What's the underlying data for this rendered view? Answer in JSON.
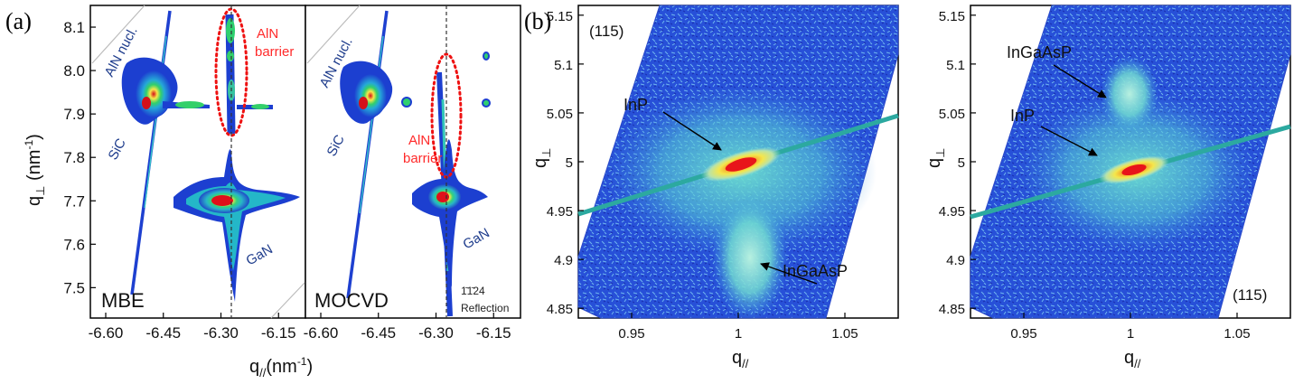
{
  "panel_labels": [
    "(a)",
    "(b)"
  ],
  "chart_data": [
    {
      "type": "heatmap",
      "panel": "(a)",
      "sample": "MBE",
      "xlabel": "q",
      "xlabel_sub": "//",
      "xlabel_unit": "(nm",
      "ylabel": "q",
      "ylabel_sub": "⊥",
      "ylabel_unit": " (nm",
      "unit_power": "-1",
      "xlim": [
        -6.64,
        -6.08
      ],
      "ylim": [
        7.43,
        8.15
      ],
      "xticks": [
        "-6.60",
        "-6.45",
        "-6.30",
        "-6.15"
      ],
      "xtick_values": [
        -6.6,
        -6.45,
        -6.3,
        -6.15
      ],
      "yticks": [
        "7.5",
        "7.6",
        "7.7",
        "7.8",
        "7.9",
        "8.0",
        "8.1"
      ],
      "ytick_values": [
        7.5,
        7.6,
        7.7,
        7.8,
        7.9,
        8.0,
        8.1
      ],
      "peaks": [
        {
          "label": "SiC",
          "qx": -6.5,
          "qz": 7.935
        },
        {
          "label": "GaN",
          "qx": -6.28,
          "qz": 7.715
        },
        {
          "label": "AlN barrier",
          "qx": -6.29,
          "qz": 7.94
        }
      ],
      "annotations": [
        "AlN nucl.",
        "SiC",
        "AlN",
        "barrier",
        "GaN",
        "MBE"
      ]
    },
    {
      "type": "heatmap",
      "panel": "(a)",
      "sample": "MOCVD",
      "xlabel": "",
      "ylabel": "",
      "xlim": [
        -6.64,
        -6.08
      ],
      "ylim": [
        7.43,
        8.15
      ],
      "xticks": [
        "-6.60",
        "-6.45",
        "-6.30",
        "-6.15"
      ],
      "xtick_values": [
        -6.6,
        -6.45,
        -6.3,
        -6.15
      ],
      "peaks": [
        {
          "label": "SiC",
          "qx": -6.5,
          "qz": 7.935
        },
        {
          "label": "GaN",
          "qx": -6.29,
          "qz": 7.722
        },
        {
          "label": "AlN barrier",
          "qx": -6.285,
          "qz": 7.85
        }
      ],
      "annotations": [
        "AlN nucl.",
        "SiC",
        "AlN",
        "barrier",
        "GaN",
        "MOCVD",
        "1̄1̄24",
        "Reflection"
      ]
    },
    {
      "type": "heatmap",
      "panel": "(b)",
      "reflection": "(115)",
      "xlabel": "q",
      "xlabel_sub": "//",
      "ylabel": "q",
      "ylabel_sub": "⊥",
      "xlim": [
        0.925,
        1.075
      ],
      "ylim": [
        4.84,
        5.16
      ],
      "xticks": [
        "0.95",
        "1",
        "1.05"
      ],
      "xtick_values": [
        0.95,
        1.0,
        1.05
      ],
      "yticks": [
        "4.85",
        "4.9",
        "4.95",
        "5",
        "5.05",
        "5.1",
        "5.15"
      ],
      "ytick_values": [
        4.85,
        4.9,
        4.95,
        5.0,
        5.05,
        5.1,
        5.15
      ],
      "peaks": [
        {
          "label": "InP",
          "qx": 1.0,
          "qz": 4.999
        },
        {
          "label": "InGaAsP",
          "qx": 1.005,
          "qz": 4.89
        }
      ],
      "annotations": [
        "InP",
        "InGaAsP"
      ]
    },
    {
      "type": "heatmap",
      "panel": "(b)",
      "reflection": "(115)",
      "xlabel": "q",
      "xlabel_sub": "//",
      "ylabel": "q",
      "ylabel_sub": "⊥",
      "xlim": [
        0.925,
        1.075
      ],
      "ylim": [
        4.84,
        5.16
      ],
      "xticks": [
        "0.95",
        "1",
        "1.05"
      ],
      "xtick_values": [
        0.95,
        1.0,
        1.05
      ],
      "yticks": [
        "4.85",
        "4.9",
        "4.95",
        "5",
        "5.05",
        "5.1",
        "5.15"
      ],
      "ytick_values": [
        4.85,
        4.9,
        4.95,
        5.0,
        5.05,
        5.1,
        5.15
      ],
      "peaks": [
        {
          "label": "InP",
          "qx": 1.0,
          "qz": 4.999
        },
        {
          "label": "InGaAsP",
          "qx": 0.995,
          "qz": 5.075
        }
      ],
      "annotations": [
        "InGaAsP",
        "InP"
      ]
    }
  ],
  "colors": {
    "navy": "#1e3c8c",
    "red_label": "#ff2a2a",
    "blue": "#1c3fd0",
    "cyan": "#4fc6d9",
    "green": "#2fd06f",
    "yellow": "#f4e64a",
    "orange": "#f18a1f",
    "red": "#e0101a",
    "ellipse": "#ee1111",
    "streak": "#2ca9a0"
  }
}
